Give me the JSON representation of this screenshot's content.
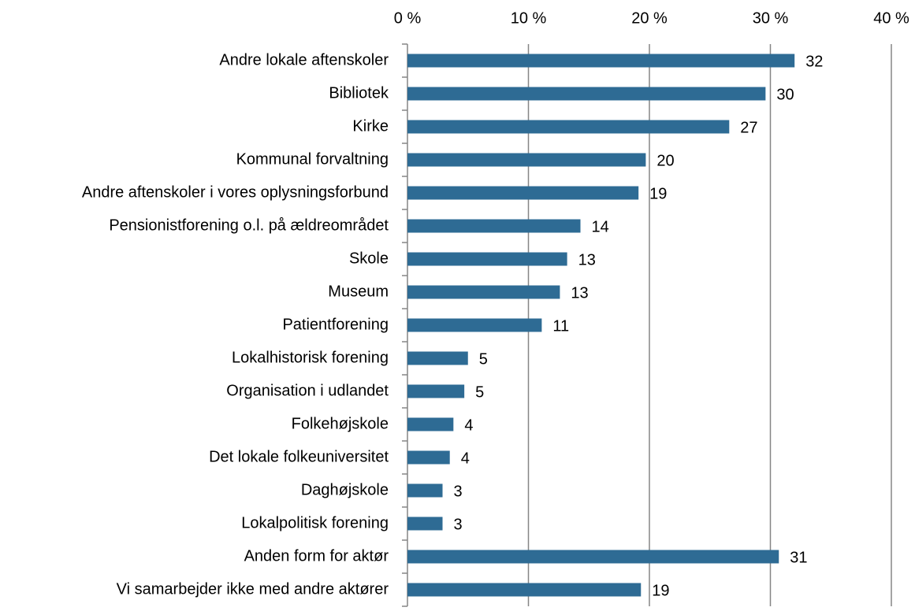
{
  "chart_data": {
    "type": "hbar",
    "categories": [
      "Andre lokale aftenskoler",
      "Bibliotek",
      "Kirke",
      "Kommunal forvaltning",
      "Andre aftenskoler i vores oplysningsforbund",
      "Pensionistforening o.l. på ældreområdet",
      "Skole",
      "Museum",
      "Patientforening",
      "Lokalhistorisk forening",
      "Organisation i udlandet",
      "Folkehøjskole",
      "Det lokale folkeuniversitet",
      "Daghøjskole",
      "Lokalpolitisk forening",
      "Anden form for aktør",
      "Vi samarbejder ikke med andre aktører"
    ],
    "values": [
      32.0,
      29.6,
      26.6,
      19.7,
      19.1,
      14.3,
      13.2,
      12.6,
      11.1,
      5.0,
      4.7,
      3.8,
      3.5,
      2.9,
      2.9,
      30.7,
      19.3
    ],
    "value_labels": [
      "32",
      "30",
      "27",
      "20",
      "19",
      "14",
      "13",
      "13",
      "11",
      "5",
      "5",
      "4",
      "4",
      "3",
      "3",
      "31",
      "19"
    ],
    "color": "#2e6b94",
    "xlim": [
      0,
      40
    ],
    "xticks": [
      {
        "value": 0,
        "label": "0 %"
      },
      {
        "value": 10,
        "label": "10 %"
      },
      {
        "value": 20,
        "label": "20 %"
      },
      {
        "value": 30,
        "label": "30 %"
      },
      {
        "value": 40,
        "label": "40 %"
      }
    ],
    "grid": true
  }
}
